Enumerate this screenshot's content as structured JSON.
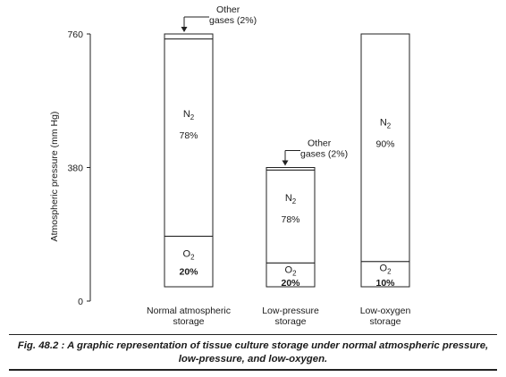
{
  "chart_data": {
    "type": "bar",
    "stacked": true,
    "ylabel": "Atmospheric pressure (mm Hg)",
    "xlabel": "",
    "ylim": [
      0,
      760
    ],
    "yticks": [
      "0",
      "380",
      "760"
    ],
    "grid": false,
    "bars": [
      {
        "category": "Normal atmospheric storage",
        "category_lines": [
          "Normal atmospheric",
          "storage"
        ],
        "total": 760,
        "segments": [
          {
            "name": "O2",
            "name_base": "O",
            "name_sub": "2",
            "value": 152,
            "label": "20%"
          },
          {
            "name": "N2",
            "name_base": "N",
            "name_sub": "2",
            "value": 593,
            "label": "78%"
          },
          {
            "name": "Other gases",
            "value": 15,
            "label": "2%"
          }
        ],
        "annotation": [
          "Other",
          "gases (2%)"
        ]
      },
      {
        "category": "Low-pressure storage",
        "category_lines": [
          "Low-pressure",
          "storage"
        ],
        "total": 380,
        "segments": [
          {
            "name": "O2",
            "name_base": "O",
            "name_sub": "2",
            "value": 76,
            "label": "20%"
          },
          {
            "name": "N2",
            "name_base": "N",
            "name_sub": "2",
            "value": 296,
            "label": "78%"
          },
          {
            "name": "Other gases",
            "value": 8,
            "label": "2%"
          }
        ],
        "annotation": [
          "Other",
          "gases (2%)"
        ]
      },
      {
        "category": "Low-oxygen storage",
        "category_lines": [
          "Low-oxygen",
          "storage"
        ],
        "total": 760,
        "segments": [
          {
            "name": "O2",
            "name_base": "O",
            "name_sub": "2",
            "value": 76,
            "label": "10%"
          },
          {
            "name": "N2",
            "name_base": "N",
            "name_sub": "2",
            "value": 684,
            "label": "90%"
          }
        ]
      }
    ]
  },
  "caption": {
    "lead": "Fig. 48.2 :",
    "line1": " A graphic representation of tissue culture storage under normal atmospheric pressure,",
    "line2": "low-pressure, and low-oxygen."
  }
}
